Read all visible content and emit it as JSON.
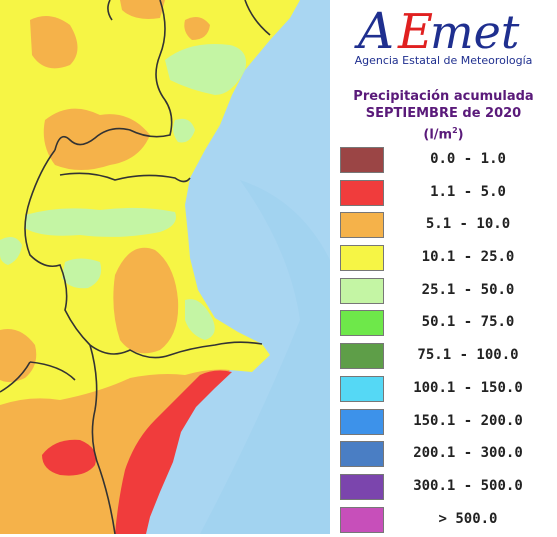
{
  "header": {
    "logo_text": "AEmet",
    "agency_name": "Agencia Estatal de Meteorología",
    "title_line1": "Precipitación acumulada",
    "title_line2": "SEPTIEMBRE de 2020",
    "title_unit_base": "(l/m",
    "title_unit_sup": "2",
    "title_unit_close": ")"
  },
  "colors": {
    "sea": "#a9d6f2",
    "brand_blue": "#1f2f8f",
    "brand_red": "#e02020",
    "border_line": "#333333"
  },
  "legend": [
    {
      "label": "0.0 - 1.0",
      "color": "#9b4545"
    },
    {
      "label": "1.1 - 5.0",
      "color": "#f03c3c"
    },
    {
      "label": "5.1 - 10.0",
      "color": "#f5b24a"
    },
    {
      "label": "10.1 - 25.0",
      "color": "#f6f545"
    },
    {
      "label": "25.1 - 50.0",
      "color": "#c4f5a4"
    },
    {
      "label": "50.1 - 75.0",
      "color": "#6ee84a"
    },
    {
      "label": "75.1 - 100.0",
      "color": "#5e9e48"
    },
    {
      "label": "100.1 - 150.0",
      "color": "#55d8f5"
    },
    {
      "label": "150.1 - 200.0",
      "color": "#3d92ea"
    },
    {
      "label": "200.1 - 300.0",
      "color": "#4a7ec4"
    },
    {
      "label": "300.1 - 500.0",
      "color": "#7b45ad"
    },
    {
      "label": "> 500.0",
      "color": "#c74fba"
    }
  ]
}
